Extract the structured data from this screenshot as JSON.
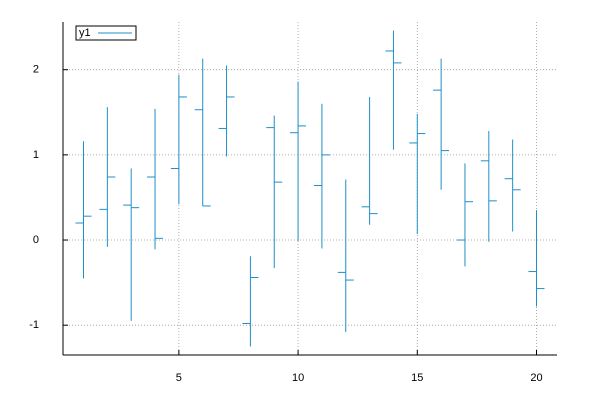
{
  "chart_data": {
    "type": "financebars",
    "x": [
      1,
      2,
      3,
      4,
      5,
      6,
      7,
      8,
      9,
      10,
      11,
      12,
      13,
      14,
      15,
      16,
      17,
      18,
      19,
      20
    ],
    "series": [
      {
        "name": "y1",
        "color": "#1f8fc8",
        "open": [
          0.2,
          0.36,
          0.41,
          0.74,
          0.84,
          1.53,
          1.31,
          -0.98,
          1.32,
          1.26,
          0.64,
          -0.38,
          0.39,
          2.22,
          1.14,
          1.76,
          0.0,
          0.93,
          0.72,
          -0.37
        ],
        "high": [
          1.16,
          1.56,
          0.84,
          1.54,
          1.94,
          2.13,
          2.05,
          -0.19,
          1.46,
          1.86,
          1.6,
          0.71,
          1.68,
          2.46,
          1.48,
          2.13,
          0.9,
          1.28,
          1.18,
          0.35
        ],
        "low": [
          -0.45,
          -0.08,
          -0.95,
          -0.11,
          0.42,
          0.4,
          0.98,
          -1.25,
          -0.33,
          -0.01,
          -0.1,
          -1.08,
          0.18,
          1.06,
          0.07,
          0.59,
          -0.31,
          -0.02,
          0.1,
          -0.78
        ],
        "close": [
          0.28,
          0.74,
          0.38,
          0.02,
          1.68,
          0.4,
          1.68,
          -0.44,
          0.68,
          1.34,
          1.0,
          -0.47,
          0.31,
          2.08,
          1.25,
          1.05,
          0.45,
          0.46,
          0.59,
          -0.57
        ]
      }
    ],
    "xlim": [
      0.14,
      20.86
    ],
    "ylim": [
      -1.35,
      2.56
    ],
    "xticks": [
      5,
      10,
      15,
      20
    ],
    "yticks": [
      -1,
      0,
      1,
      2
    ],
    "grid": true,
    "legend": "top-left"
  }
}
